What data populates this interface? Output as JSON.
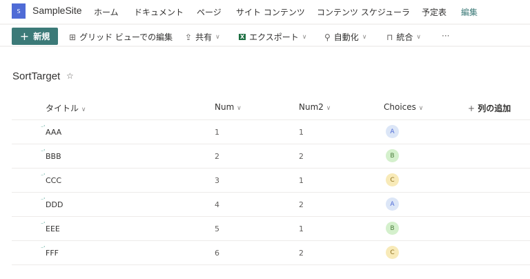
{
  "site": {
    "logo_letter": "S",
    "name": "SampleSite"
  },
  "nav": [
    "ホーム",
    "ドキュメント",
    "ページ",
    "サイト コンテンツ",
    "コンテンツ スケジューラ",
    "予定表",
    "編集"
  ],
  "commands": {
    "new": "新規",
    "grid": "グリッド ビューでの編集",
    "share": "共有",
    "export": "エクスポート",
    "automate": "自動化",
    "integrate": "統合",
    "more": "···"
  },
  "list": {
    "title": "SortTarget",
    "columns": [
      "タイトル",
      "Num",
      "Num2",
      "Choices"
    ],
    "add_column": "列の追加",
    "rows": [
      {
        "title": "AAA",
        "num": "1",
        "num2": "1",
        "choice": "A"
      },
      {
        "title": "BBB",
        "num": "2",
        "num2": "2",
        "choice": "B"
      },
      {
        "title": "CCC",
        "num": "3",
        "num2": "1",
        "choice": "C"
      },
      {
        "title": "DDD",
        "num": "4",
        "num2": "2",
        "choice": "A"
      },
      {
        "title": "EEE",
        "num": "5",
        "num2": "1",
        "choice": "B"
      },
      {
        "title": "FFF",
        "num": "6",
        "num2": "2",
        "choice": "C"
      }
    ]
  },
  "choice_colors": {
    "A": {
      "bg": "#dce6f7",
      "fg": "#4f6bd6"
    },
    "B": {
      "bg": "#d4f0cc",
      "fg": "#4a7a3a"
    },
    "C": {
      "bg": "#f8eab8",
      "fg": "#8a6d1a"
    }
  },
  "accent": "#3c7a78"
}
